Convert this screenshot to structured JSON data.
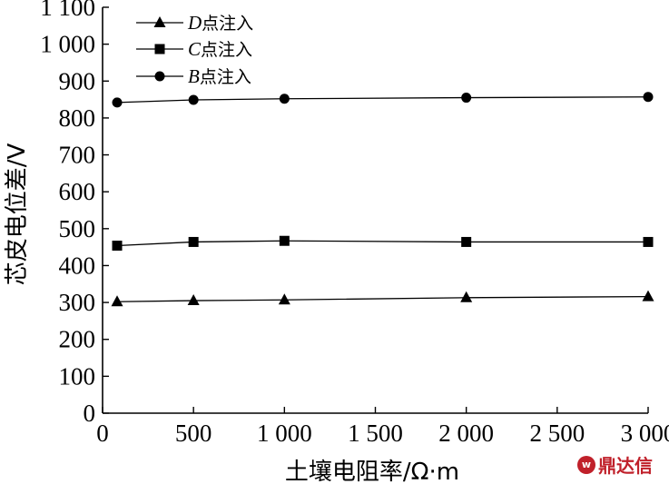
{
  "chart_data": {
    "type": "line",
    "xlabel": "土壤电阻率/Ω·m",
    "ylabel": "芯皮电位差/V",
    "xlim": [
      0,
      3000
    ],
    "ylim": [
      0,
      1100
    ],
    "x_ticks": [
      0,
      500,
      1000,
      1500,
      2000,
      2500,
      3000
    ],
    "x_tick_labels": [
      "0",
      "500",
      "1 000",
      "1 500",
      "2 000",
      "2 500",
      "3 000"
    ],
    "y_ticks": [
      0,
      100,
      200,
      300,
      400,
      500,
      600,
      700,
      800,
      900,
      1000,
      1100
    ],
    "y_tick_labels": [
      "0",
      "100",
      "200",
      "300",
      "400",
      "500",
      "600",
      "700",
      "800",
      "900",
      "1 000",
      "1 100"
    ],
    "grid": false,
    "legend_position": "top-left",
    "series": [
      {
        "name": "D点注入",
        "letter": "D",
        "suffix": "点注入",
        "marker": "triangle",
        "x": [
          80,
          500,
          1000,
          2000,
          3000
        ],
        "y": [
          302,
          305,
          307,
          313,
          316
        ]
      },
      {
        "name": "C点注入",
        "letter": "C",
        "suffix": "点注入",
        "marker": "square",
        "x": [
          80,
          500,
          1000,
          2000,
          3000
        ],
        "y": [
          454,
          464,
          467,
          464,
          464
        ]
      },
      {
        "name": "B点注入",
        "letter": "B",
        "suffix": "点注入",
        "marker": "circle",
        "x": [
          80,
          500,
          1000,
          2000,
          3000
        ],
        "y": [
          842,
          849,
          852,
          855,
          857
        ]
      }
    ]
  },
  "watermark": {
    "text": "鼎达信",
    "logo_text": "w"
  }
}
